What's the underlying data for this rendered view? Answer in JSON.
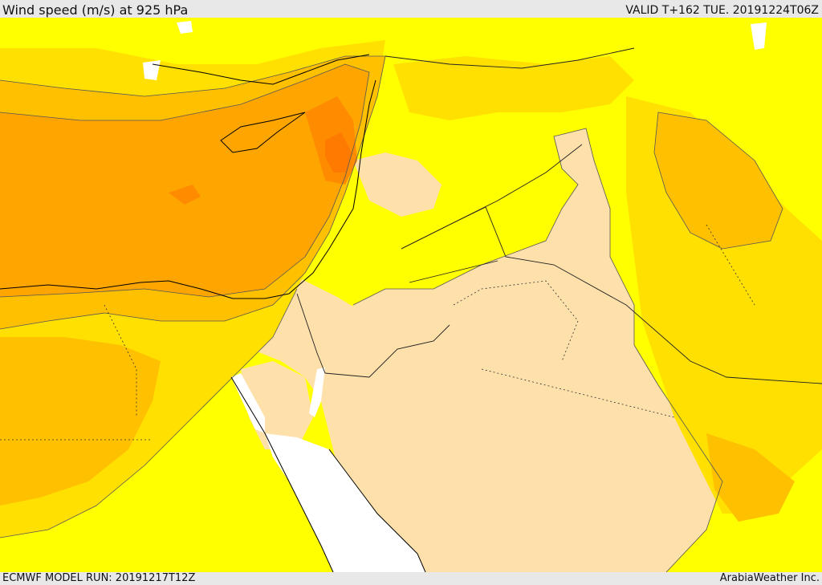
{
  "header": {
    "title": "Wind speed (m/s) at 925 hPa",
    "valid": "VALID T+162 TUE. 20191224T06Z"
  },
  "footer": {
    "model_run": "ECMWF MODEL RUN: 20191217T12Z",
    "credit": "ArabiaWeather Inc."
  },
  "colors": {
    "calm": "#fde0aa",
    "light": "#ffff00",
    "moderate": "#ffe000",
    "fresh": "#ffc000",
    "strong": "#ffa500",
    "very_strong": "#ff8c00",
    "peak": "#ff7a00",
    "sea_no_data": "#ffffff"
  }
}
